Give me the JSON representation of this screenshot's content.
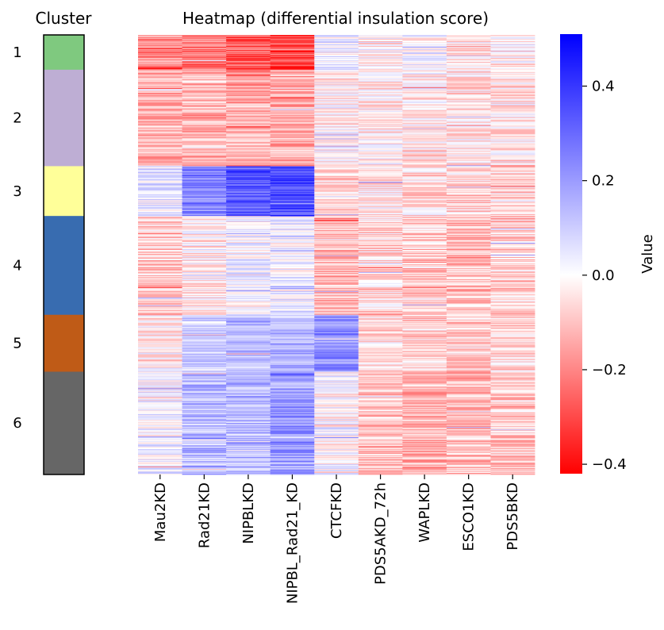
{
  "chart_data": [
    {
      "type": "bar",
      "title": "Cluster",
      "orientation": "stacked-vertical",
      "categories": [
        "1",
        "2",
        "3",
        "4",
        "5",
        "6"
      ],
      "values": [
        44,
        122,
        63,
        125,
        72,
        130
      ],
      "colors": [
        "#7fc97f",
        "#beaed4",
        "#ffff99",
        "#386cb0",
        "#bf5b17",
        "#666666"
      ]
    },
    {
      "type": "heatmap",
      "title": "Heatmap (differential insulation score)",
      "columns": [
        "Mau2KD",
        "Rad21KD",
        "NIPBLKD",
        "NIPBL_Rad21_KD",
        "CTCFKD",
        "PDS5AKD_72h",
        "WAPLKD",
        "ESCO1KD",
        "PDS5BKD"
      ],
      "row_clusters": [
        "1",
        "2",
        "3",
        "4",
        "5",
        "6"
      ],
      "cluster_sizes": [
        44,
        122,
        63,
        125,
        72,
        130
      ],
      "cluster_mean_values": [
        [
          -0.2,
          -0.22,
          -0.26,
          -0.3,
          0.04,
          -0.02,
          0.02,
          -0.04,
          -0.02
        ],
        [
          -0.12,
          -0.12,
          -0.14,
          -0.15,
          -0.02,
          -0.02,
          -0.03,
          -0.04,
          -0.04
        ],
        [
          0.06,
          0.25,
          0.32,
          0.36,
          -0.08,
          -0.04,
          -0.06,
          -0.07,
          -0.06
        ],
        [
          -0.08,
          -0.02,
          0.02,
          0.04,
          -0.12,
          -0.06,
          -0.08,
          -0.1,
          -0.07
        ],
        [
          -0.03,
          0.1,
          0.12,
          0.14,
          0.22,
          -0.06,
          -0.07,
          -0.08,
          -0.07
        ],
        [
          0.02,
          0.14,
          0.14,
          0.2,
          0.0,
          -0.1,
          -0.12,
          -0.1,
          -0.09
        ]
      ],
      "colorbar": {
        "label": "Value",
        "vmin": -0.42,
        "vmax": 0.51,
        "center": 0.0,
        "ticks": [
          "0.4",
          "0.2",
          "0.0",
          "−0.2",
          "−0.4"
        ],
        "tick_values": [
          0.4,
          0.2,
          0.0,
          -0.2,
          -0.4
        ],
        "colors": {
          "low": "#ff0000",
          "mid": "#ffffff",
          "high": "#0000ff"
        }
      }
    }
  ]
}
